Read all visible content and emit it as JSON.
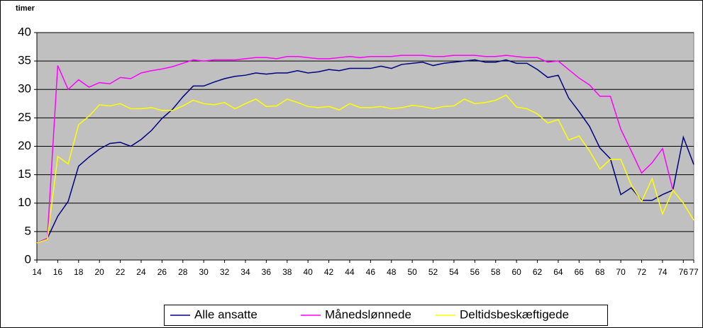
{
  "chart_data": {
    "type": "line",
    "y_label": "timer",
    "x": [
      14,
      15,
      16,
      17,
      18,
      19,
      20,
      21,
      22,
      23,
      24,
      25,
      26,
      27,
      28,
      29,
      30,
      31,
      32,
      33,
      34,
      35,
      36,
      37,
      38,
      39,
      40,
      41,
      42,
      43,
      44,
      45,
      46,
      47,
      48,
      49,
      50,
      51,
      52,
      53,
      54,
      55,
      56,
      57,
      58,
      59,
      60,
      61,
      62,
      63,
      64,
      65,
      66,
      67,
      68,
      69,
      70,
      71,
      72,
      73,
      74,
      75,
      76,
      77
    ],
    "xlim": [
      14,
      77
    ],
    "xticks": [
      14,
      16,
      18,
      20,
      22,
      24,
      26,
      28,
      30,
      32,
      34,
      36,
      38,
      40,
      42,
      44,
      46,
      48,
      50,
      52,
      54,
      56,
      58,
      60,
      62,
      64,
      66,
      68,
      70,
      72,
      74,
      76,
      77
    ],
    "ylim": [
      0,
      40
    ],
    "yticks": [
      0,
      5,
      10,
      15,
      20,
      25,
      30,
      35,
      40
    ],
    "grid": true,
    "legend": "bottom",
    "series": [
      {
        "name": "Alle ansatte",
        "color": "#000080",
        "values": [
          3,
          3.8,
          7.7,
          10.3,
          16.5,
          18.1,
          19.5,
          20.5,
          20.7,
          20,
          21.2,
          22.8,
          24.9,
          26.5,
          28.7,
          30.6,
          30.6,
          31.3,
          31.9,
          32.3,
          32.5,
          32.9,
          32.7,
          32.9,
          32.9,
          33.3,
          32.9,
          33.1,
          33.5,
          33.3,
          33.7,
          33.7,
          33.7,
          34.1,
          33.7,
          34.4,
          34.6,
          34.8,
          34.2,
          34.6,
          34.8,
          35,
          35.2,
          34.8,
          34.8,
          35.2,
          34.6,
          34.6,
          33.5,
          32.1,
          32.5,
          28.5,
          26.1,
          23.5,
          19.7,
          17.8,
          11.5,
          12.7,
          10.5,
          10.5,
          11.5,
          12.3,
          21.6,
          16.8
        ]
      },
      {
        "name": "Månedslønnede",
        "color": "#ff00ff",
        "values": [
          3,
          3.8,
          34.2,
          30,
          31.7,
          30.4,
          31.2,
          31,
          32.1,
          31.9,
          32.9,
          33.3,
          33.6,
          34,
          34.6,
          35.2,
          35,
          35.2,
          35.2,
          35.2,
          35.4,
          35.6,
          35.6,
          35.4,
          35.8,
          35.8,
          35.6,
          35.4,
          35.4,
          35.6,
          35.8,
          35.6,
          35.8,
          35.8,
          35.8,
          36,
          36,
          36,
          35.8,
          35.8,
          36,
          36,
          36,
          35.8,
          35.8,
          36,
          35.8,
          35.6,
          35.6,
          34.8,
          35,
          33.5,
          32,
          30.8,
          28.8,
          28.8,
          23,
          19.2,
          15.3,
          17.1,
          19.6,
          12.3,
          null,
          null
        ]
      },
      {
        "name": "Deltidsbeskæftigede",
        "color": "#ffff00",
        "values": [
          3,
          3.6,
          18.2,
          16.9,
          23.8,
          25.3,
          27.3,
          27.1,
          27.5,
          26.6,
          26.6,
          26.8,
          26.3,
          26.3,
          27.1,
          28.1,
          27.5,
          27.3,
          27.7,
          26.6,
          27.5,
          28.3,
          27,
          27.1,
          28.3,
          27.7,
          27,
          26.8,
          27,
          26.4,
          27.5,
          26.8,
          26.8,
          27,
          26.6,
          26.8,
          27.2,
          27,
          26.6,
          27,
          27.1,
          28.3,
          27.5,
          27.7,
          28.1,
          29,
          26.9,
          26.6,
          25.7,
          24.1,
          24.7,
          21.1,
          21.8,
          19.2,
          16,
          17.7,
          17.7,
          13.2,
          10.3,
          14.3,
          8.1,
          12.3,
          10,
          7
        ]
      }
    ]
  }
}
